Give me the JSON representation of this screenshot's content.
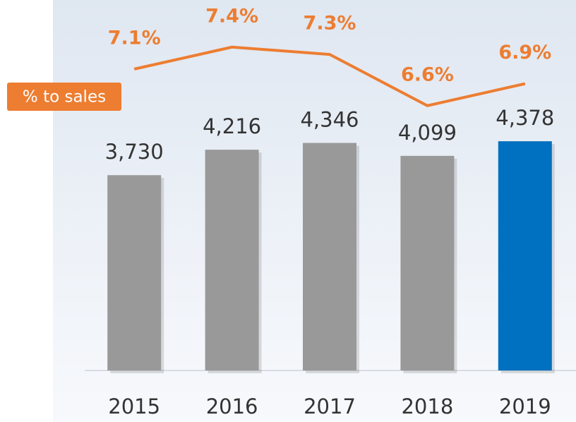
{
  "chart_data": {
    "type": "bar",
    "categories": [
      "2015",
      "2016",
      "2017",
      "2018",
      "2019"
    ],
    "series": [
      {
        "values": [
          3730,
          4216,
          4346,
          4099,
          4378
        ],
        "value_labels": [
          "3,730",
          "4,216",
          "4,346",
          "4,099",
          "4,378"
        ],
        "colors": [
          "#999999",
          "#999999",
          "#999999",
          "#999999",
          "#0070c0"
        ]
      },
      {
        "name": "% to sales",
        "color": "#ed7d31",
        "axis": "y2",
        "type": "line",
        "values": [
          7.1,
          7.4,
          7.3,
          6.6,
          6.9
        ],
        "value_labels": [
          "7.1%",
          "7.4%",
          "7.3%",
          "6.6%",
          "6.9%"
        ]
      }
    ],
    "ylim": [
      0,
      5000
    ],
    "y2lim": [
      5.6,
      7.6
    ]
  }
}
